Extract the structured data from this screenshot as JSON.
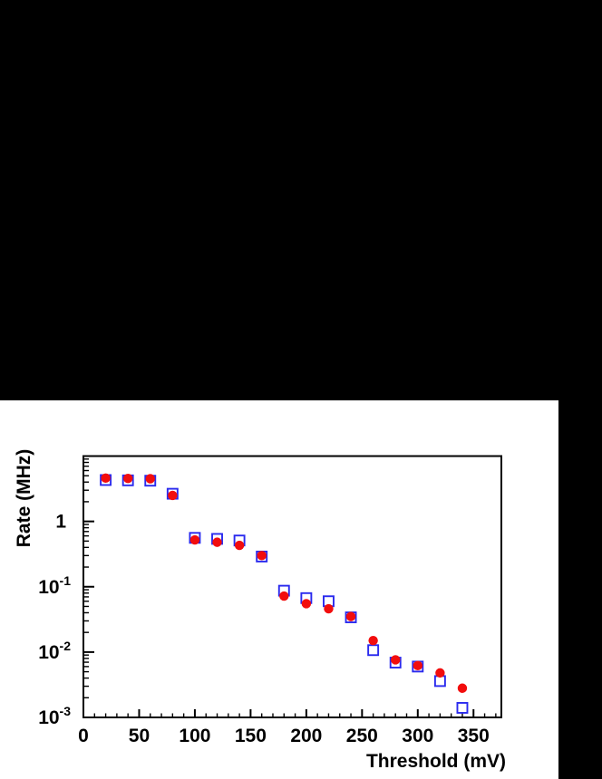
{
  "page": {
    "background_color": "#000000",
    "panel_background_color": "#ffffff"
  },
  "chart_data": {
    "type": "scatter",
    "title": "",
    "xlabel": "Threshold (mV)",
    "ylabel": "Rate (MHz)",
    "x_range": [
      0,
      375
    ],
    "y_range": [
      0.001,
      10
    ],
    "y_scale": "log",
    "grid": false,
    "legend": "none",
    "frame_color": "#000000",
    "x_major_ticks": [
      0,
      50,
      100,
      150,
      200,
      250,
      300,
      350
    ],
    "x_tick_labels": [
      "0",
      "50",
      "100",
      "150",
      "200",
      "250",
      "300",
      "350"
    ],
    "x_minor_tick_step": 10,
    "y_tick_labels": [
      {
        "base": "1",
        "exp": "",
        "value": 1
      },
      {
        "base": "10",
        "exp": "-1",
        "value": 0.1
      },
      {
        "base": "10",
        "exp": "-2",
        "value": 0.01
      },
      {
        "base": "10",
        "exp": "-3",
        "value": 0.001
      }
    ],
    "x": [
      20,
      40,
      60,
      80,
      100,
      120,
      140,
      160,
      180,
      200,
      220,
      240,
      260,
      280,
      300,
      320,
      340
    ],
    "series": [
      {
        "name": "blue open squares",
        "marker": "open-square",
        "color": "#2a2aee",
        "values": [
          4.3,
          4.25,
          4.2,
          2.65,
          0.56,
          0.54,
          0.51,
          0.29,
          0.087,
          0.067,
          0.06,
          0.034,
          0.0107,
          0.0069,
          0.006,
          0.0036,
          0.0014
        ]
      },
      {
        "name": "red filled circles",
        "marker": "filled-circle",
        "color": "#f20d0d",
        "values": [
          4.6,
          4.55,
          4.5,
          2.5,
          0.52,
          0.48,
          0.43,
          0.3,
          0.072,
          0.055,
          0.046,
          0.035,
          0.015,
          0.0076,
          0.0062,
          0.0048,
          0.0028
        ]
      }
    ]
  }
}
